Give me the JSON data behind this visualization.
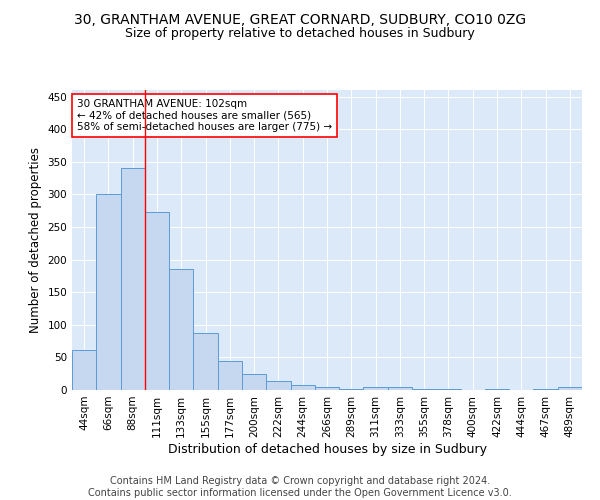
{
  "title1": "30, GRANTHAM AVENUE, GREAT CORNARD, SUDBURY, CO10 0ZG",
  "title2": "Size of property relative to detached houses in Sudbury",
  "xlabel": "Distribution of detached houses by size in Sudbury",
  "ylabel": "Number of detached properties",
  "categories": [
    "44sqm",
    "66sqm",
    "88sqm",
    "111sqm",
    "133sqm",
    "155sqm",
    "177sqm",
    "200sqm",
    "222sqm",
    "244sqm",
    "266sqm",
    "289sqm",
    "311sqm",
    "333sqm",
    "355sqm",
    "378sqm",
    "400sqm",
    "422sqm",
    "444sqm",
    "467sqm",
    "489sqm"
  ],
  "values": [
    62,
    301,
    340,
    273,
    185,
    88,
    45,
    24,
    14,
    7,
    5,
    2,
    5,
    4,
    2,
    1,
    0,
    1,
    0,
    1,
    4
  ],
  "bar_color": "#c5d8f0",
  "bar_edge_color": "#5b9bd5",
  "background_color": "#dce9f8",
  "annotation_box_text": "30 GRANTHAM AVENUE: 102sqm\n← 42% of detached houses are smaller (565)\n58% of semi-detached houses are larger (775) →",
  "annotation_box_color": "white",
  "annotation_box_edge_color": "red",
  "vline_color": "red",
  "footer1": "Contains HM Land Registry data © Crown copyright and database right 2024.",
  "footer2": "Contains public sector information licensed under the Open Government Licence v3.0.",
  "ylim": [
    0,
    460
  ],
  "yticks": [
    0,
    50,
    100,
    150,
    200,
    250,
    300,
    350,
    400,
    450
  ],
  "title1_fontsize": 10,
  "title2_fontsize": 9,
  "xlabel_fontsize": 9,
  "ylabel_fontsize": 8.5,
  "tick_fontsize": 7.5,
  "footer_fontsize": 7,
  "ann_fontsize": 7.5
}
